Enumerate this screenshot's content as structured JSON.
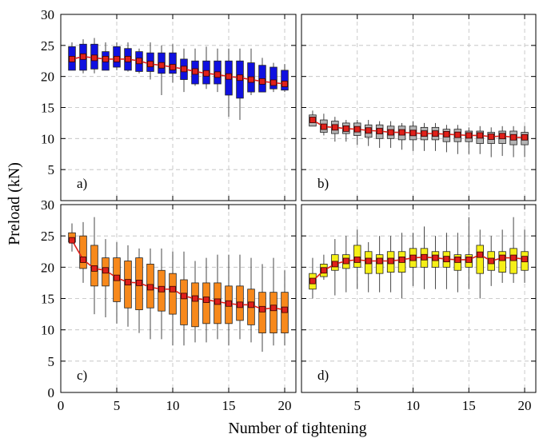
{
  "figure": {
    "xlabel": "Number of tightening",
    "ylabel": "Preload (kN)"
  },
  "chart_data": [
    {
      "type": "box",
      "panel_label": "a)",
      "box_color": "#1010e0",
      "mean_color": "#e0201a",
      "xlim": [
        0,
        21
      ],
      "ylim": [
        0,
        30
      ],
      "x_ticks": [
        "0",
        "5",
        "10",
        "15",
        "20"
      ],
      "y_ticks": [
        "5",
        "10",
        "15",
        "20",
        "25",
        "30"
      ],
      "grid": true,
      "x": [
        1,
        2,
        3,
        4,
        5,
        6,
        7,
        8,
        9,
        10,
        11,
        12,
        13,
        14,
        15,
        16,
        17,
        18,
        19,
        20
      ],
      "whisker_low": [
        21.5,
        20.5,
        20.5,
        21.2,
        21.0,
        20.8,
        20.5,
        19.5,
        17.0,
        19.0,
        17.5,
        18.5,
        18.0,
        17.5,
        13.5,
        13.0,
        17.0,
        17.5,
        17.5,
        17.5
      ],
      "q1": [
        21.0,
        21.0,
        21.2,
        21.0,
        21.5,
        21.0,
        20.8,
        20.8,
        20.5,
        20.5,
        19.5,
        18.8,
        18.8,
        18.8,
        17.0,
        16.5,
        17.5,
        17.5,
        18.0,
        17.8
      ],
      "q3": [
        24.8,
        25.2,
        25.2,
        24.0,
        24.8,
        24.5,
        24.0,
        23.8,
        23.8,
        23.8,
        22.8,
        22.5,
        22.5,
        22.5,
        22.5,
        22.5,
        22.2,
        21.8,
        21.5,
        21.0
      ],
      "whisker_high": [
        25.5,
        26.0,
        26.2,
        25.5,
        25.5,
        25.5,
        24.5,
        25.5,
        25.0,
        25.2,
        24.5,
        24.5,
        24.8,
        24.5,
        24.5,
        24.5,
        24.5,
        23.0,
        22.2,
        22.0
      ],
      "mean": [
        22.8,
        23.2,
        23.0,
        22.8,
        22.8,
        22.8,
        22.5,
        22.0,
        21.8,
        21.5,
        21.2,
        20.8,
        20.5,
        20.3,
        20.0,
        19.8,
        19.5,
        19.2,
        19.0,
        18.8
      ]
    },
    {
      "type": "box",
      "panel_label": "b)",
      "box_color": "#b4b4b4",
      "mean_color": "#e0201a",
      "xlim": [
        0,
        21
      ],
      "ylim": [
        0,
        30
      ],
      "x_ticks": [
        "5",
        "10",
        "15",
        "20"
      ],
      "y_ticks": [],
      "grid": true,
      "x": [
        1,
        2,
        3,
        4,
        5,
        6,
        7,
        8,
        9,
        10,
        11,
        12,
        13,
        14,
        15,
        16,
        17,
        18,
        19,
        20
      ],
      "whisker_low": [
        12.0,
        10.5,
        9.5,
        9.5,
        9.0,
        8.8,
        8.5,
        8.5,
        8.2,
        8.0,
        8.0,
        8.0,
        7.8,
        7.5,
        7.5,
        7.5,
        7.0,
        7.2,
        7.0,
        7.0
      ],
      "q1": [
        12.0,
        11.0,
        10.8,
        10.8,
        10.5,
        10.2,
        10.0,
        10.0,
        9.8,
        9.8,
        9.8,
        9.8,
        9.5,
        9.5,
        9.5,
        9.2,
        9.2,
        9.2,
        9.0,
        9.0
      ],
      "q3": [
        13.8,
        13.0,
        12.8,
        12.5,
        12.5,
        12.2,
        12.2,
        12.0,
        12.0,
        12.0,
        11.8,
        11.8,
        11.5,
        11.5,
        11.2,
        11.2,
        11.0,
        11.2,
        11.2,
        11.0
      ],
      "whisker_high": [
        14.5,
        14.0,
        13.5,
        13.0,
        13.0,
        13.0,
        12.8,
        12.8,
        12.5,
        12.8,
        12.5,
        12.5,
        12.2,
        12.2,
        11.8,
        12.0,
        11.8,
        12.0,
        12.0,
        12.0
      ],
      "mean": [
        13.0,
        11.9,
        11.8,
        11.6,
        11.5,
        11.3,
        11.2,
        11.0,
        11.0,
        10.9,
        10.8,
        10.8,
        10.7,
        10.6,
        10.5,
        10.5,
        10.3,
        10.4,
        10.2,
        10.2
      ]
    },
    {
      "type": "box",
      "panel_label": "c)",
      "box_color": "#f7891c",
      "mean_color": "#e0201a",
      "xlim": [
        0,
        21
      ],
      "ylim": [
        0,
        30
      ],
      "x_ticks": [
        "0",
        "5",
        "10",
        "15",
        "20"
      ],
      "y_ticks": [
        "0",
        "5",
        "10",
        "15",
        "20",
        "25",
        "30"
      ],
      "grid": true,
      "x": [
        1,
        2,
        3,
        4,
        5,
        6,
        7,
        8,
        9,
        10,
        11,
        12,
        13,
        14,
        15,
        16,
        17,
        18,
        19,
        20
      ],
      "whisker_low": [
        22.5,
        17.5,
        12.5,
        12.0,
        11.0,
        10.5,
        9.5,
        8.5,
        8.5,
        7.5,
        7.5,
        8.0,
        8.0,
        8.5,
        7.5,
        8.5,
        8.0,
        6.5,
        7.5,
        7.5
      ],
      "q1": [
        24.0,
        19.8,
        17.0,
        17.0,
        14.5,
        13.5,
        13.2,
        13.5,
        13.0,
        12.5,
        10.8,
        10.5,
        11.0,
        11.0,
        11.0,
        11.5,
        10.8,
        9.5,
        9.5,
        9.5
      ],
      "q3": [
        25.5,
        25.0,
        23.5,
        21.5,
        21.5,
        21.0,
        21.5,
        20.5,
        19.5,
        19.0,
        18.0,
        17.5,
        17.5,
        17.5,
        17.0,
        17.0,
        16.5,
        16.0,
        16.0,
        16.0
      ],
      "whisker_high": [
        27.0,
        27.2,
        28.0,
        24.5,
        24.0,
        23.5,
        23.0,
        23.0,
        23.0,
        22.5,
        22.5,
        21.0,
        21.5,
        22.0,
        22.0,
        22.0,
        21.5,
        20.5,
        21.5,
        19.5
      ],
      "mean": [
        24.3,
        21.2,
        19.8,
        19.5,
        18.3,
        17.6,
        17.5,
        16.8,
        16.5,
        16.5,
        15.4,
        15.0,
        14.8,
        14.5,
        14.2,
        14.0,
        14.0,
        13.3,
        13.5,
        13.2
      ]
    },
    {
      "type": "box",
      "panel_label": "d)",
      "box_color": "#f5ef16",
      "mean_color": "#e0201a",
      "xlim": [
        0,
        21
      ],
      "ylim": [
        0,
        30
      ],
      "x_ticks": [
        "5",
        "10",
        "15",
        "20"
      ],
      "y_ticks": [],
      "grid": true,
      "x": [
        1,
        2,
        3,
        4,
        5,
        6,
        7,
        8,
        9,
        10,
        11,
        12,
        13,
        14,
        15,
        16,
        17,
        18,
        19,
        20
      ],
      "whisker_low": [
        15.0,
        18.0,
        15.5,
        16.0,
        16.5,
        16.0,
        16.0,
        16.0,
        15.0,
        17.0,
        16.5,
        16.5,
        16.5,
        16.0,
        16.5,
        15.0,
        17.0,
        17.5,
        17.5,
        17.5
      ],
      "q1": [
        16.5,
        18.5,
        19.5,
        19.8,
        20.0,
        19.0,
        19.0,
        19.2,
        19.2,
        20.0,
        20.0,
        20.0,
        20.0,
        19.5,
        20.0,
        19.0,
        19.5,
        19.2,
        19.0,
        19.5
      ],
      "q3": [
        19.0,
        20.5,
        22.0,
        22.0,
        23.5,
        22.5,
        22.0,
        22.5,
        22.5,
        23.0,
        23.0,
        22.5,
        22.5,
        22.0,
        22.0,
        23.5,
        22.5,
        22.5,
        23.0,
        22.5
      ],
      "whisker_high": [
        21.5,
        22.0,
        24.5,
        25.0,
        26.0,
        24.0,
        25.0,
        25.0,
        25.5,
        25.5,
        26.5,
        25.0,
        25.5,
        25.5,
        28.0,
        26.0,
        25.0,
        26.0,
        28.0,
        26.0
      ],
      "mean": [
        17.8,
        19.5,
        20.5,
        21.0,
        21.2,
        21.0,
        21.0,
        21.0,
        21.2,
        21.5,
        21.6,
        21.5,
        21.3,
        21.2,
        21.2,
        22.0,
        21.0,
        21.5,
        21.5,
        21.3
      ]
    }
  ]
}
